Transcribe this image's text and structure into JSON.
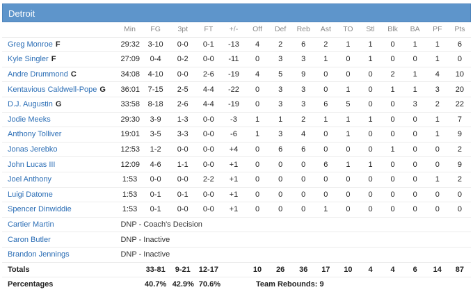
{
  "team": {
    "name": "Detroit"
  },
  "columns": [
    "Min",
    "FG",
    "3pt",
    "FT",
    "+/-",
    "Off",
    "Def",
    "Reb",
    "Ast",
    "TO",
    "Stl",
    "Blk",
    "BA",
    "PF",
    "Pts"
  ],
  "players": [
    {
      "name": "Greg Monroe",
      "pos": "F",
      "stats": [
        "29:32",
        "3-10",
        "0-0",
        "0-1",
        "-13",
        "4",
        "2",
        "6",
        "2",
        "1",
        "1",
        "0",
        "1",
        "1",
        "6"
      ]
    },
    {
      "name": "Kyle Singler",
      "pos": "F",
      "stats": [
        "27:09",
        "0-4",
        "0-2",
        "0-0",
        "-11",
        "0",
        "3",
        "3",
        "1",
        "0",
        "1",
        "0",
        "0",
        "1",
        "0"
      ]
    },
    {
      "name": "Andre Drummond",
      "pos": "C",
      "stats": [
        "34:08",
        "4-10",
        "0-0",
        "2-6",
        "-19",
        "4",
        "5",
        "9",
        "0",
        "0",
        "0",
        "2",
        "1",
        "4",
        "10"
      ]
    },
    {
      "name": "Kentavious Caldwell-Pope",
      "pos": "G",
      "stats": [
        "36:01",
        "7-15",
        "2-5",
        "4-4",
        "-22",
        "0",
        "3",
        "3",
        "0",
        "1",
        "0",
        "1",
        "1",
        "3",
        "20"
      ]
    },
    {
      "name": "D.J. Augustin",
      "pos": "G",
      "stats": [
        "33:58",
        "8-18",
        "2-6",
        "4-4",
        "-19",
        "0",
        "3",
        "3",
        "6",
        "5",
        "0",
        "0",
        "3",
        "2",
        "22"
      ]
    },
    {
      "name": "Jodie Meeks",
      "pos": "",
      "stats": [
        "29:30",
        "3-9",
        "1-3",
        "0-0",
        "-3",
        "1",
        "1",
        "2",
        "1",
        "1",
        "1",
        "0",
        "0",
        "1",
        "7"
      ]
    },
    {
      "name": "Anthony Tolliver",
      "pos": "",
      "stats": [
        "19:01",
        "3-5",
        "3-3",
        "0-0",
        "-6",
        "1",
        "3",
        "4",
        "0",
        "1",
        "0",
        "0",
        "0",
        "1",
        "9"
      ]
    },
    {
      "name": "Jonas Jerebko",
      "pos": "",
      "stats": [
        "12:53",
        "1-2",
        "0-0",
        "0-0",
        "+4",
        "0",
        "6",
        "6",
        "0",
        "0",
        "0",
        "1",
        "0",
        "0",
        "2"
      ]
    },
    {
      "name": "John Lucas III",
      "pos": "",
      "stats": [
        "12:09",
        "4-6",
        "1-1",
        "0-0",
        "+1",
        "0",
        "0",
        "0",
        "6",
        "1",
        "1",
        "0",
        "0",
        "0",
        "9"
      ]
    },
    {
      "name": "Joel Anthony",
      "pos": "",
      "stats": [
        "1:53",
        "0-0",
        "0-0",
        "2-2",
        "+1",
        "0",
        "0",
        "0",
        "0",
        "0",
        "0",
        "0",
        "0",
        "1",
        "2"
      ]
    },
    {
      "name": "Luigi Datome",
      "pos": "",
      "stats": [
        "1:53",
        "0-1",
        "0-1",
        "0-0",
        "+1",
        "0",
        "0",
        "0",
        "0",
        "0",
        "0",
        "0",
        "0",
        "0",
        "0"
      ]
    },
    {
      "name": "Spencer Dinwiddie",
      "pos": "",
      "stats": [
        "1:53",
        "0-1",
        "0-0",
        "0-0",
        "+1",
        "0",
        "0",
        "0",
        "1",
        "0",
        "0",
        "0",
        "0",
        "0",
        "0"
      ]
    }
  ],
  "dnp": [
    {
      "name": "Cartier Martin",
      "note": "DNP - Coach's Decision"
    },
    {
      "name": "Caron Butler",
      "note": "DNP - Inactive"
    },
    {
      "name": "Brandon Jennings",
      "note": "DNP - Inactive"
    }
  ],
  "totals": {
    "label": "Totals",
    "stats": [
      "",
      "33-81",
      "9-21",
      "12-17",
      "",
      "10",
      "26",
      "36",
      "17",
      "10",
      "4",
      "4",
      "6",
      "14",
      "87"
    ]
  },
  "percentages": {
    "label": "Percentages",
    "fg": "40.7%",
    "three": "42.9%",
    "ft": "70.6%",
    "team_rebounds": "Team Rebounds: 9"
  }
}
